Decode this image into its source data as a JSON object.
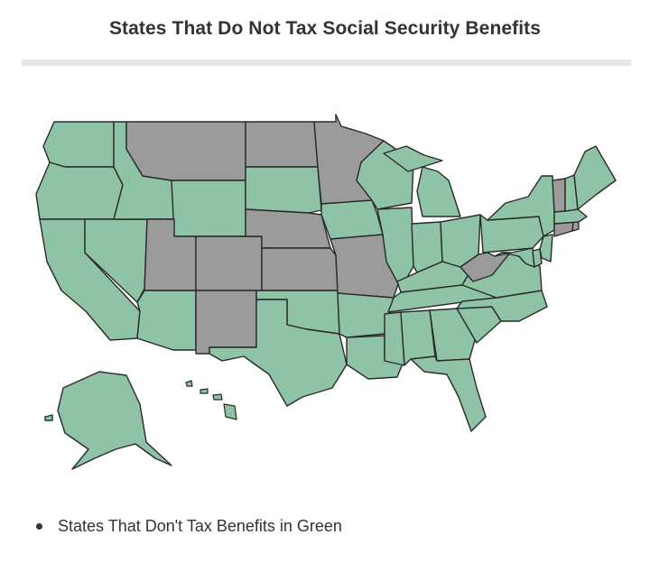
{
  "title": "States That Do Not Tax Social Security Benefits",
  "legend": {
    "text": "States That Don't Tax Benefits in Green"
  },
  "colors": {
    "no_tax_green": "#8fc3a6",
    "taxes_gray": "#9b9b9b",
    "border": "#2a2a2a"
  },
  "map": {
    "taxing_states_gray": [
      "Montana",
      "North Dakota",
      "Minnesota",
      "Nebraska",
      "Kansas",
      "Utah",
      "Colorado",
      "New Mexico",
      "Missouri",
      "West Virginia",
      "Vermont",
      "Connecticut",
      "Rhode Island"
    ]
  }
}
